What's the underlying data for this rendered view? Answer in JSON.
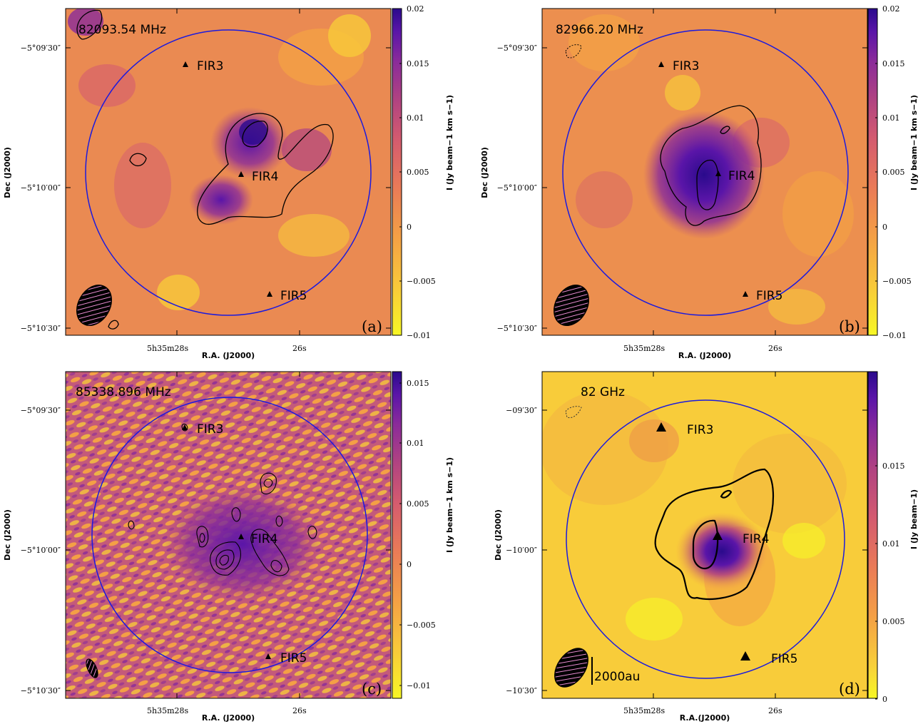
{
  "colors": {
    "circle": "#1a1adf",
    "contour": "#000000",
    "cmap": [
      "#f7f725",
      "#f8c93a",
      "#f4a045",
      "#ea7b57",
      "#d45b6f",
      "#b14381",
      "#8a2b9a",
      "#5a15a8",
      "#2a0a8c"
    ]
  },
  "panels": [
    {
      "id": "a",
      "freq": "82093.54 MHz",
      "letter": "(a)",
      "xlabel": "R.A. (J2000)",
      "ylabel": "Dec (J2000)",
      "x_ticks": [
        "5h35m28s",
        "26s"
      ],
      "y_ticks": [
        "−5°09′30″",
        "−5°10′00″",
        "−5°10′30″"
      ],
      "colorbar_label": "I (Jy beam−1 km s−1)",
      "colorbar_ticks": [
        "0.02",
        "0.015",
        "0.01",
        "0.005",
        "0",
        "−0.005",
        "−0.01"
      ],
      "sources": [
        {
          "name": "FIR3",
          "label": "FIR3"
        },
        {
          "name": "FIR4",
          "label": "FIR4"
        },
        {
          "name": "FIR5",
          "label": "FIR5"
        }
      ]
    },
    {
      "id": "b",
      "freq": "82966.20 MHz",
      "letter": "(b)",
      "xlabel": "R.A. (J2000)",
      "ylabel": "Dec (J2000)",
      "x_ticks": [
        "5h35m28s",
        "26s"
      ],
      "y_ticks": [
        "−5°09′30″",
        "−5°10′00″",
        "−5°10′30″"
      ],
      "colorbar_label": "I (Jy beam−1 km s−1)",
      "colorbar_ticks": [
        "0.02",
        "0.015",
        "0.01",
        "0.005",
        "0",
        "−0.005",
        "−0.01"
      ],
      "sources": [
        {
          "name": "FIR3",
          "label": "FIR3"
        },
        {
          "name": "FIR4",
          "label": "FIR4"
        },
        {
          "name": "FIR5",
          "label": "FIR5"
        }
      ]
    },
    {
      "id": "c",
      "freq": "85338.896 MHz",
      "letter": "(c)",
      "xlabel": "R.A. (J2000)",
      "ylabel": "Dec (J2000)",
      "x_ticks": [
        "5h35m28s",
        "26s"
      ],
      "y_ticks": [
        "−5°09′30″",
        "−5°10′00″",
        "−5°10′30″"
      ],
      "colorbar_label": "I (Jy beam−1 km s−1)",
      "colorbar_ticks": [
        "0.015",
        "0.01",
        "0.005",
        "0",
        "−0.005",
        "−0.01"
      ],
      "sources": [
        {
          "name": "FIR3",
          "label": "FIR3"
        },
        {
          "name": "FIR4",
          "label": "FIR4"
        },
        {
          "name": "FIR5",
          "label": "FIR5"
        }
      ]
    },
    {
      "id": "d",
      "freq": "82 GHz",
      "letter": "(d)",
      "xlabel": "R.A.(J2000)",
      "ylabel": "Dec (J2000)",
      "x_ticks": [
        "5h35m28s",
        "26s"
      ],
      "y_ticks": [
        "−09′30″",
        "−10′00″",
        "−10′30″"
      ],
      "colorbar_label": "I (Jy beam−1)",
      "colorbar_ticks": [
        "0.015",
        "0.01",
        "0.005",
        "0"
      ],
      "scale_bar": "2000au",
      "sources": [
        {
          "name": "FIR3",
          "label": "FIR3"
        },
        {
          "name": "FIR4",
          "label": "FIR4"
        },
        {
          "name": "FIR5",
          "label": "FIR5"
        }
      ]
    }
  ],
  "chart_data": [
    {
      "type": "heatmap",
      "title": "82093.54 MHz",
      "xlabel": "R.A. (J2000)",
      "ylabel": "Dec (J2000)",
      "colorbar_label": "I (Jy beam−1 km s−1)",
      "color_range": [
        -0.01,
        0.02
      ],
      "sources": [
        "FIR3",
        "FIR4",
        "FIR5"
      ]
    },
    {
      "type": "heatmap",
      "title": "82966.20 MHz",
      "xlabel": "R.A. (J2000)",
      "ylabel": "Dec (J2000)",
      "colorbar_label": "I (Jy beam−1 km s−1)",
      "color_range": [
        -0.01,
        0.02
      ],
      "sources": [
        "FIR3",
        "FIR4",
        "FIR5"
      ]
    },
    {
      "type": "heatmap",
      "title": "85338.896 MHz",
      "xlabel": "R.A. (J2000)",
      "ylabel": "Dec (J2000)",
      "colorbar_label": "I (Jy beam−1 km s−1)",
      "color_range": [
        -0.011,
        0.016
      ],
      "sources": [
        "FIR3",
        "FIR4",
        "FIR5"
      ]
    },
    {
      "type": "heatmap",
      "title": "82 GHz",
      "xlabel": "R.A.(J2000)",
      "ylabel": "Dec (J2000)",
      "colorbar_label": "I (Jy beam−1)",
      "color_range": [
        -0.002,
        0.019
      ],
      "sources": [
        "FIR3",
        "FIR4",
        "FIR5"
      ]
    }
  ]
}
